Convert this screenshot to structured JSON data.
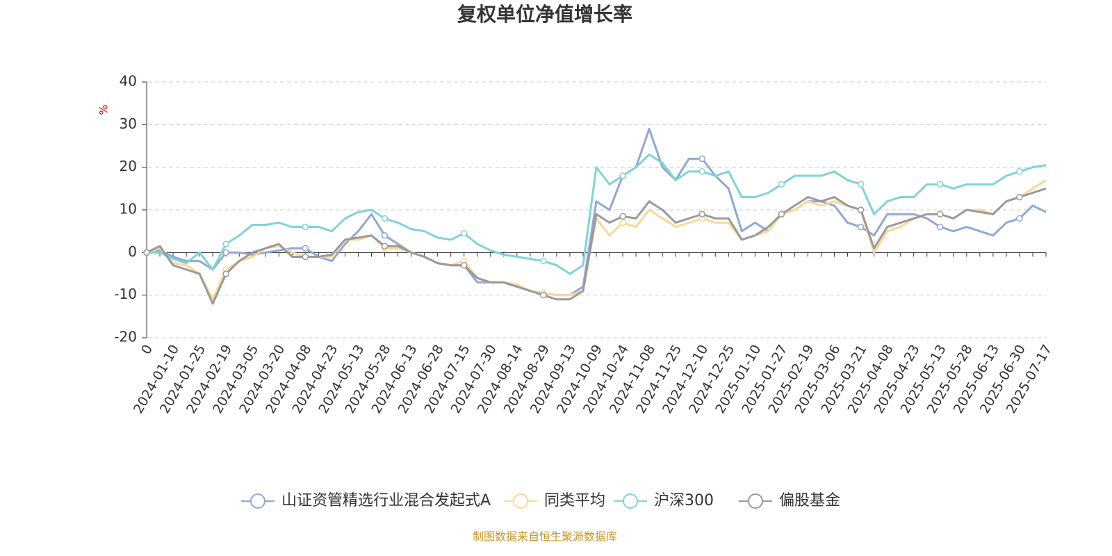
{
  "chart_data": {
    "type": "line",
    "title": "复权单位净值增长率",
    "y_label": "%",
    "source": "制图数据来自恒生聚源数据库",
    "categories": [
      "0",
      null,
      "2024-01-10",
      null,
      "2024-01-25",
      null,
      "2024-02-19",
      null,
      "2024-03-05",
      null,
      "2024-03-20",
      null,
      "2024-04-08",
      null,
      "2024-04-23",
      null,
      "2024-05-13",
      null,
      "2024-05-28",
      null,
      "2024-06-13",
      null,
      "2024-06-28",
      null,
      "2024-07-15",
      null,
      "2024-07-30",
      null,
      "2024-08-14",
      null,
      "2024-08-29",
      null,
      "2024-09-13",
      null,
      "2024-10-09",
      null,
      "2024-10-24",
      null,
      "2024-11-08",
      null,
      "2024-11-25",
      null,
      "2024-12-10",
      null,
      "2024-12-25",
      null,
      "2025-01-10",
      null,
      "2025-01-27",
      null,
      "2025-02-19",
      null,
      "2025-03-06",
      null,
      "2025-03-21",
      null,
      "2025-04-08",
      null,
      "2025-04-23",
      null,
      "2025-05-13",
      null,
      "2025-05-28",
      null,
      "2025-06-13",
      null,
      "2025-06-30",
      null,
      "2025-07-17"
    ],
    "series": [
      {
        "name": "山证资管精选行业混合发起式A",
        "color": "#8fa8d8",
        "values": [
          0,
          0.5,
          -1,
          -2,
          -2,
          -4,
          0,
          0,
          -0.5,
          0,
          0.5,
          1,
          1,
          -1,
          -2,
          2,
          5,
          9,
          4,
          2,
          0,
          -1,
          -2.5,
          -3,
          -3,
          -7,
          -7,
          -7,
          -8,
          -9,
          -9.5,
          -10,
          -10,
          -8,
          12,
          10,
          18,
          20,
          29,
          20,
          17,
          22,
          22,
          18,
          15,
          5,
          7,
          5,
          9,
          10,
          12,
          12,
          11,
          7,
          6,
          4,
          9,
          9,
          9,
          8,
          6,
          5,
          6,
          5,
          4,
          7,
          8,
          11,
          9.5
        ]
      },
      {
        "name": "同类平均",
        "color": "#fcd795",
        "values": [
          0,
          1,
          -2.5,
          -3,
          -5,
          -11,
          -4,
          -2,
          -1,
          1,
          1.5,
          0,
          -1,
          -1,
          -1,
          3,
          3,
          4,
          1,
          1,
          0,
          -1,
          -2.5,
          -3,
          -2,
          -6,
          -7,
          -7,
          -7.5,
          -9,
          -9.5,
          -10,
          -10,
          -9,
          8,
          4,
          7,
          6,
          10,
          8,
          6,
          7,
          8,
          7,
          7,
          3,
          4,
          5,
          9,
          10,
          12,
          11,
          12,
          11,
          10,
          0,
          5,
          6,
          8,
          9,
          9,
          8,
          10,
          10,
          9,
          12,
          13,
          15,
          17
        ]
      },
      {
        "name": "沪深300",
        "color": "#7fd4d4",
        "values": [
          0,
          0,
          -1.5,
          -2.5,
          0,
          -4,
          2,
          4,
          6.5,
          6.5,
          7,
          6,
          6,
          6,
          5,
          8,
          9.5,
          10,
          8,
          7,
          5.5,
          5,
          3.5,
          3,
          4.5,
          2,
          0.5,
          -0.5,
          -1,
          -1.5,
          -2,
          -3,
          -5,
          -3,
          20,
          16,
          18,
          20,
          23,
          21,
          17,
          19,
          19,
          18,
          19,
          13,
          13,
          14,
          16,
          18,
          18,
          18,
          19,
          17,
          16,
          9,
          12,
          13,
          13,
          16,
          16,
          15,
          16,
          16,
          16,
          18,
          19,
          20,
          20.5
        ]
      },
      {
        "name": "偏股基金",
        "color": "#9a9a9a",
        "values": [
          0,
          1.5,
          -3,
          -4,
          -5,
          -12,
          -5,
          -2,
          0,
          1,
          2,
          -1,
          -1,
          -1,
          -0.5,
          3,
          3.5,
          4,
          1.5,
          1.5,
          0,
          -1,
          -2.5,
          -3,
          -3,
          -6,
          -7,
          -7,
          -8,
          -9,
          -10,
          -11,
          -11,
          -9,
          9,
          7,
          8.5,
          8,
          12,
          10,
          7,
          8,
          9,
          8,
          8,
          3,
          4,
          6,
          9,
          11,
          13,
          12,
          13,
          11,
          10,
          1,
          6,
          7,
          8,
          9,
          9,
          8,
          10,
          9.5,
          9,
          12,
          13,
          14,
          15
        ]
      }
    ],
    "ylim": [
      -20,
      40
    ],
    "yticks": [
      -20,
      -10,
      0,
      10,
      20,
      30,
      40
    ],
    "grid": true
  }
}
